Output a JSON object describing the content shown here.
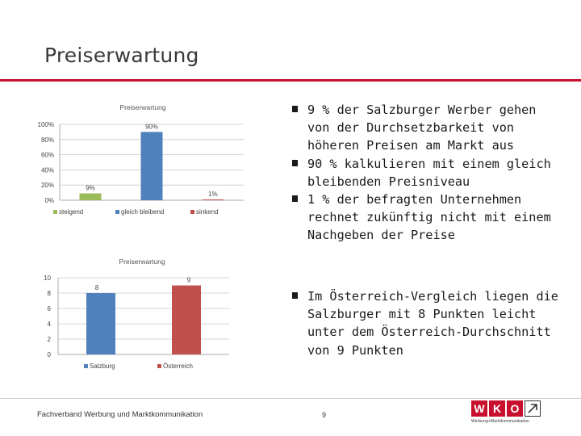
{
  "slide": {
    "title": "Preiserwartung",
    "page_number": "9"
  },
  "bullets_top": [
    "9 % der Salzburger Werber gehen von der Durchsetzbarkeit von höheren Preisen am Markt aus",
    "90 % kalkulieren mit einem gleich bleibenden Preisniveau",
    "1 % der befragten Unternehmen rechnet zukünftig nicht mit einem Nachgeben der Preise"
  ],
  "bullets_bottom": [
    "Im Österreich-Vergleich liegen die Salzburger mit 8 Punkten leicht unter dem Österreich-Durchschnitt von 9 Punkten"
  ],
  "footer": {
    "text": "Fachverband Werbung und Marktkommunikation"
  },
  "logo": {
    "letters": [
      "W",
      "K",
      "O"
    ],
    "subtitle": "Werbung+Marktkommunikation",
    "icon": "arrow-up-right-icon",
    "color": "#c8102e"
  },
  "chart_data": [
    {
      "type": "bar",
      "title": "Preiserwartung",
      "categories": [
        "steigend",
        "gleich bleibend",
        "sinkend"
      ],
      "values": [
        9,
        90,
        1
      ],
      "value_labels": [
        "9%",
        "90%",
        "1%"
      ],
      "colors": [
        "#9bbb59",
        "#4f81bd",
        "#c0504d"
      ],
      "yticks": [
        "0%",
        "20%",
        "40%",
        "60%",
        "80%",
        "100%"
      ],
      "ylim": [
        0,
        100
      ],
      "grid": true,
      "legend": "bottom"
    },
    {
      "type": "bar",
      "title": "Preiserwartung",
      "categories": [
        "Salzburg",
        "Österreich"
      ],
      "values": [
        8,
        9
      ],
      "value_labels": [
        "8",
        "9"
      ],
      "colors": [
        "#4f81bd",
        "#c0504d"
      ],
      "yticks": [
        "0",
        "2",
        "4",
        "6",
        "8",
        "10"
      ],
      "ylim": [
        0,
        10
      ],
      "grid": true,
      "legend": "bottom"
    }
  ]
}
